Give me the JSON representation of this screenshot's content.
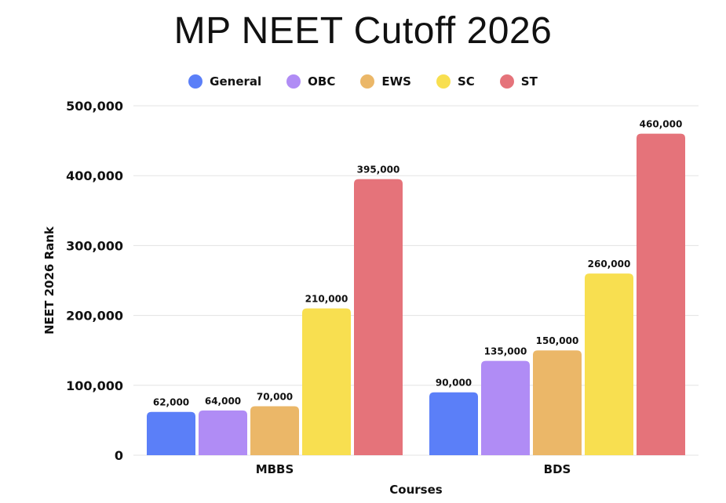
{
  "chart_data": {
    "type": "bar",
    "title": "MP NEET Cutoff 2026",
    "xlabel": "Courses",
    "ylabel": "NEET 2026 Rank",
    "categories": [
      "MBBS",
      "BDS"
    ],
    "ylim": [
      0,
      500000
    ],
    "yticks": [
      0,
      100000,
      200000,
      300000,
      400000,
      500000
    ],
    "ytick_labels": [
      "0",
      "100,000",
      "200,000",
      "300,000",
      "400,000",
      "500,000"
    ],
    "grid": true,
    "legend_position": "top-center",
    "series": [
      {
        "name": "General",
        "color": "#5b7ff8",
        "values": [
          62000,
          90000
        ],
        "labels": [
          "62,000",
          "90,000"
        ]
      },
      {
        "name": "OBC",
        "color": "#b08cf5",
        "values": [
          64000,
          135000
        ],
        "labels": [
          "64,000",
          "135,000"
        ]
      },
      {
        "name": "EWS",
        "color": "#ebb768",
        "values": [
          70000,
          150000
        ],
        "labels": [
          "70,000",
          "150,000"
        ]
      },
      {
        "name": "SC",
        "color": "#f8df50",
        "values": [
          210000,
          260000
        ],
        "labels": [
          "210,000",
          "260,000"
        ]
      },
      {
        "name": "ST",
        "color": "#e5737a",
        "values": [
          395000,
          460000
        ],
        "labels": [
          "395,000",
          "460,000"
        ]
      }
    ]
  }
}
